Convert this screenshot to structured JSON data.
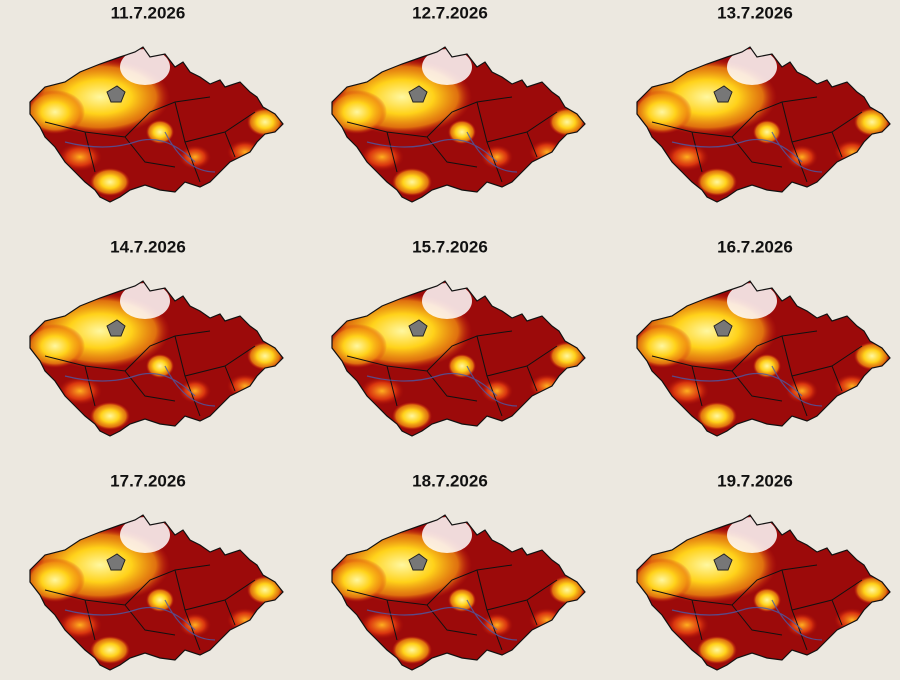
{
  "panels": [
    {
      "date": "11.7.2026"
    },
    {
      "date": "12.7.2026"
    },
    {
      "date": "13.7.2026"
    },
    {
      "date": "14.7.2026"
    },
    {
      "date": "15.7.2026"
    },
    {
      "date": "16.7.2026"
    },
    {
      "date": "17.7.2026"
    },
    {
      "date": "18.7.2026"
    },
    {
      "date": "19.7.2026"
    }
  ]
}
